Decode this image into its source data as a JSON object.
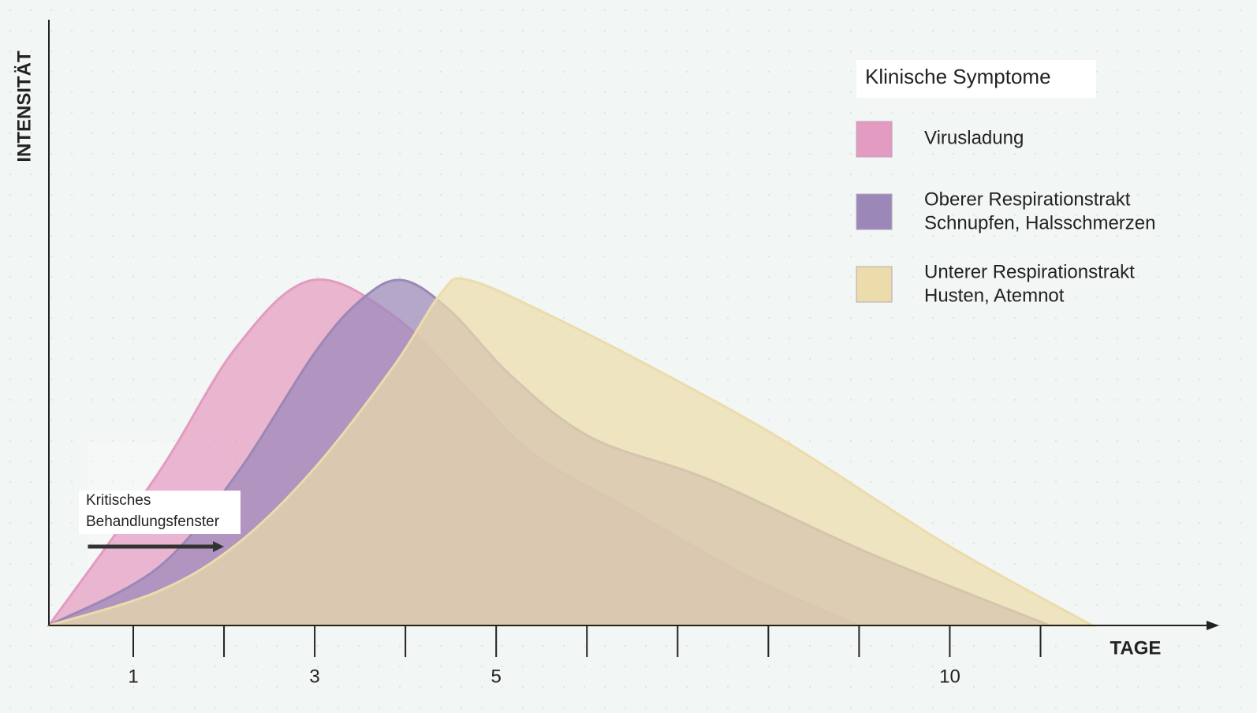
{
  "chart_data": {
    "type": "area",
    "x_label": "TAGE",
    "y_label": "INTENSITÄT",
    "xlim": [
      0.07,
      12.96
    ],
    "ylim": [
      0,
      100
    ],
    "xticks": [
      1,
      3,
      5,
      10
    ],
    "xminor_ticks": [
      2,
      4,
      6,
      7,
      8,
      9,
      11
    ],
    "legend_title": "Klinische Symptome",
    "legend": "top-right",
    "annotation": {
      "lines": [
        "Kritisches",
        "Behandlungsfenster"
      ],
      "x_start": 0.5,
      "x_end": 2.0
    },
    "series": [
      {
        "name": "Virusladung",
        "color": "#e49bc1",
        "x": [
          0.07,
          1.27,
          2.14,
          2.97,
          3.88,
          4.75,
          5.44,
          6.49,
          7.79,
          9.0
        ],
        "values": [
          0,
          25,
          46,
          57,
          51,
          38,
          28,
          19,
          8,
          0
        ]
      },
      {
        "name": "Oberer Respirationstrakt",
        "description": "Schnupfen, Halsschmerzen",
        "color": "#9b88b8",
        "x": [
          0.07,
          1.27,
          2.14,
          3.0,
          3.53,
          3.97,
          4.49,
          5.18,
          6.05,
          7.36,
          9.1,
          11.1
        ],
        "values": [
          0,
          9.5,
          25,
          45,
          54,
          57,
          52,
          41,
          31,
          24,
          12,
          0
        ]
      },
      {
        "name": "Unterer Respirationstrakt",
        "description": "Husten, Atemnot",
        "color": "#ecdcab",
        "x": [
          0.07,
          1.27,
          2.14,
          3.0,
          3.88,
          4.4,
          4.7,
          5.62,
          6.92,
          8.23,
          9.96,
          11.57
        ],
        "values": [
          0,
          5.6,
          13.4,
          26,
          43,
          55,
          57,
          51,
          41,
          30,
          13.4,
          0
        ]
      }
    ]
  }
}
